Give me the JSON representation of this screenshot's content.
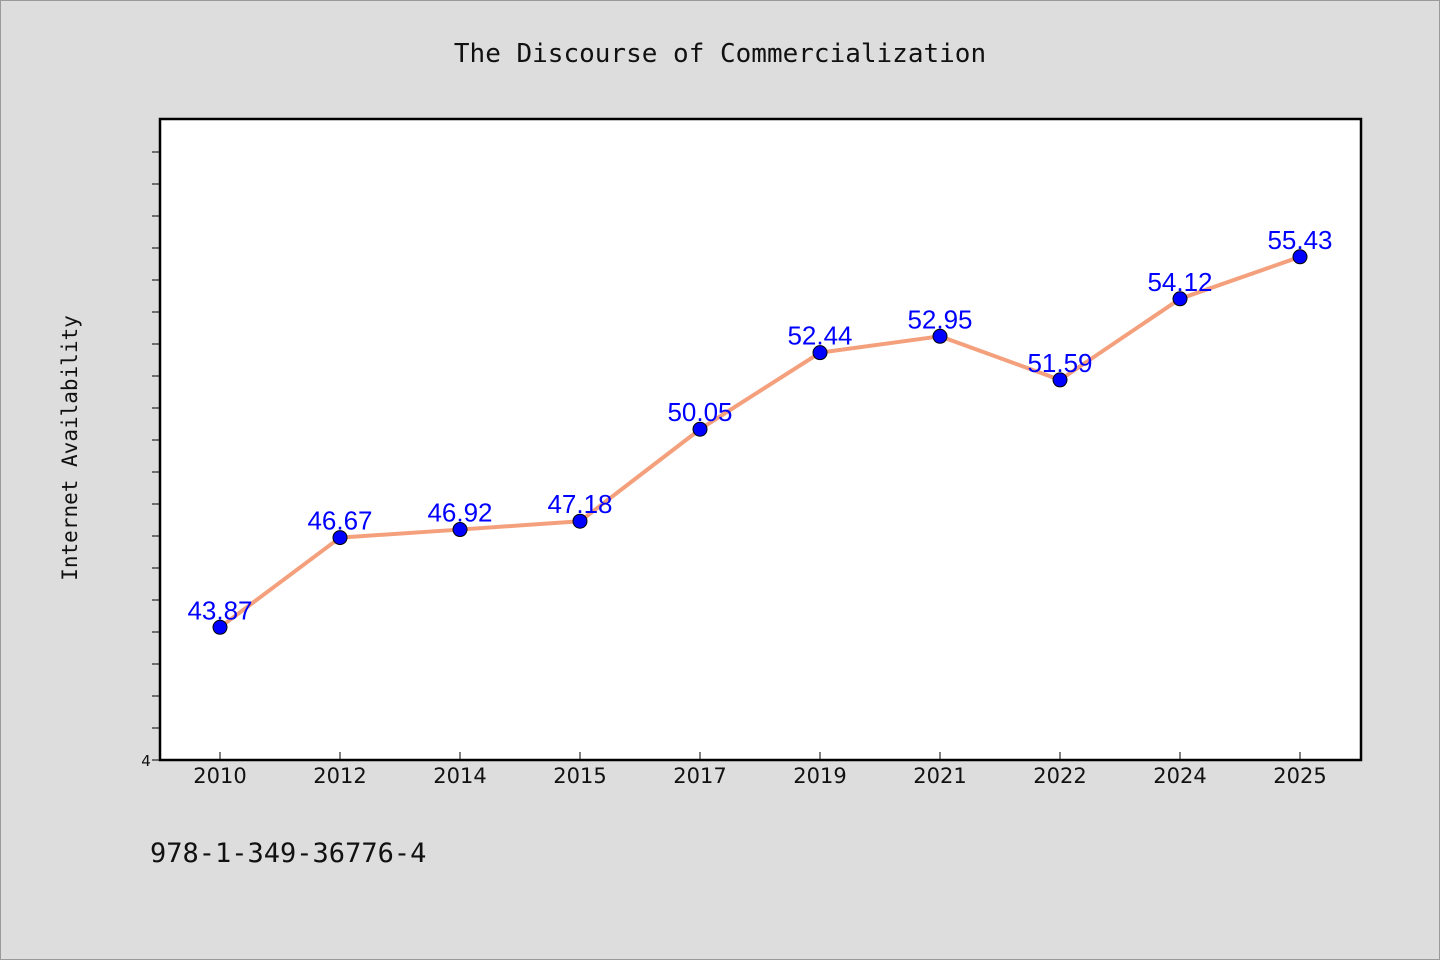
{
  "chart_data": {
    "type": "line",
    "title": "The Discourse of Commercialization",
    "ylabel": "Internet Availability",
    "xlabel": "",
    "categories": [
      "2010",
      "2012",
      "2014",
      "2015",
      "2017",
      "2019",
      "2021",
      "2022",
      "2024",
      "2025"
    ],
    "series": [
      {
        "values": [
          43.87,
          46.67,
          46.92,
          47.18,
          50.05,
          52.44,
          52.95,
          51.59,
          54.12,
          55.43
        ],
        "labels": [
          "43.87",
          "46.67",
          "46.92",
          "47.18",
          "50.05",
          "52.44",
          "52.95",
          "51.59",
          "54.12",
          "55.43"
        ],
        "line_color": "#f4a07c",
        "marker_color": "#0000ff"
      }
    ],
    "ylim": [
      39.73,
      59.73
    ],
    "y_tick_label": "4",
    "grid": false,
    "legend": "none"
  },
  "footer": {
    "isbn": "978-1-349-36776-4"
  },
  "colors": {
    "background": "#dddddd",
    "plot_background": "#ffffff",
    "axis": "#000000",
    "data_label": "#0000ff"
  }
}
